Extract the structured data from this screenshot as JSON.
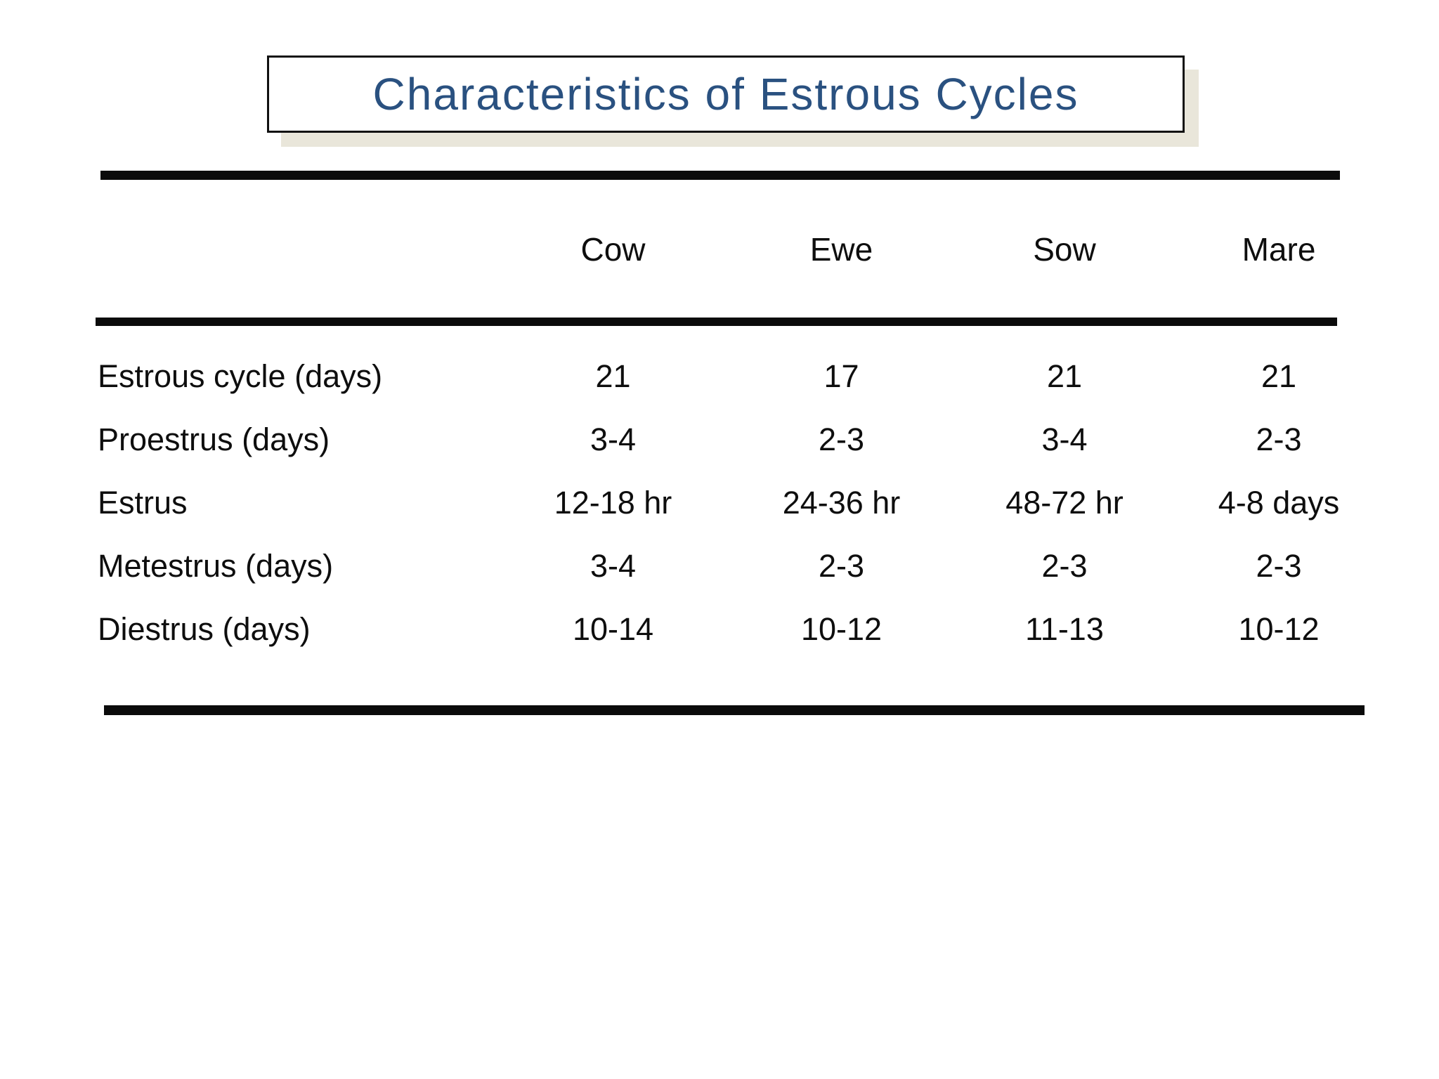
{
  "slide": {
    "title": "Characteristics of Estrous Cycles"
  },
  "table": {
    "columns": [
      "Cow",
      "Ewe",
      "Sow",
      "Mare"
    ],
    "rows": [
      {
        "label": "Estrous cycle (days)",
        "values": [
          "21",
          "17",
          "21",
          "21"
        ]
      },
      {
        "label": "Proestrus (days)",
        "values": [
          "3-4",
          "2-3",
          "3-4",
          "2-3"
        ]
      },
      {
        "label": "Estrus",
        "values": [
          "12-18 hr",
          "24-36 hr",
          "48-72 hr",
          "4-8 days"
        ]
      },
      {
        "label": "Metestrus (days)",
        "values": [
          "3-4",
          "2-3",
          "2-3",
          "2-3"
        ]
      },
      {
        "label": "Diestrus (days)",
        "values": [
          "10-14",
          "10-12",
          "11-13",
          "10-12"
        ]
      }
    ]
  },
  "colors": {
    "title_text": "#2a5180",
    "title_border": "#111111",
    "title_shadow": "#e9e6da",
    "rule": "#0b0b0b",
    "background": "#ffffff"
  }
}
